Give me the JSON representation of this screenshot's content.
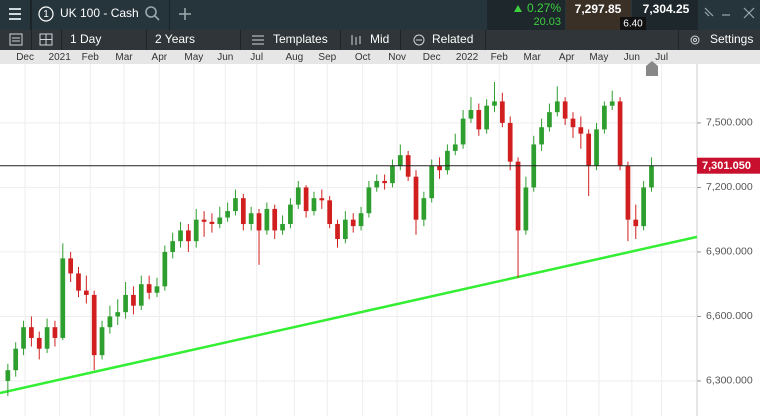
{
  "header": {
    "instrument_number": "1",
    "instrument": "UK 100 - Cash",
    "change_pct": "0.27%",
    "change": "20.03",
    "bid": "7,297.85",
    "spread": "6.40",
    "ask": "7,304.25"
  },
  "toolbar": {
    "interval": "1 Day",
    "range": "2 Years",
    "templates": "Templates",
    "price_type": "Mid",
    "related": "Related",
    "settings": "Settings"
  },
  "chart_data": {
    "type": "candlestick",
    "candles": [
      [
        6300,
        6380,
        6230,
        6350
      ],
      [
        6350,
        6480,
        6320,
        6450
      ],
      [
        6450,
        6580,
        6420,
        6550
      ],
      [
        6550,
        6600,
        6460,
        6500
      ],
      [
        6500,
        6530,
        6400,
        6450
      ],
      [
        6450,
        6590,
        6430,
        6550
      ],
      [
        6550,
        6580,
        6460,
        6500
      ],
      [
        6500,
        6940,
        6490,
        6870
      ],
      [
        6870,
        6900,
        6760,
        6800
      ],
      [
        6800,
        6830,
        6690,
        6720
      ],
      [
        6720,
        6790,
        6660,
        6700
      ],
      [
        6700,
        6720,
        6350,
        6420
      ],
      [
        6420,
        6580,
        6400,
        6550
      ],
      [
        6550,
        6650,
        6520,
        6600
      ],
      [
        6600,
        6680,
        6560,
        6620
      ],
      [
        6620,
        6760,
        6590,
        6700
      ],
      [
        6700,
        6740,
        6610,
        6650
      ],
      [
        6650,
        6790,
        6630,
        6750
      ],
      [
        6750,
        6790,
        6680,
        6710
      ],
      [
        6710,
        6780,
        6690,
        6740
      ],
      [
        6740,
        6930,
        6720,
        6900
      ],
      [
        6900,
        6990,
        6870,
        6950
      ],
      [
        6950,
        7040,
        6920,
        7000
      ],
      [
        7000,
        7030,
        6900,
        6950
      ],
      [
        6950,
        7100,
        6920,
        7050
      ],
      [
        7050,
        7090,
        6970,
        7040
      ],
      [
        7040,
        7080,
        6990,
        7030
      ],
      [
        7030,
        7110,
        7010,
        7060
      ],
      [
        7060,
        7130,
        7040,
        7090
      ],
      [
        7090,
        7190,
        7070,
        7150
      ],
      [
        7150,
        7170,
        7000,
        7030
      ],
      [
        7030,
        7110,
        7000,
        7080
      ],
      [
        7080,
        7100,
        6840,
        7000
      ],
      [
        7000,
        7130,
        6980,
        7100
      ],
      [
        7100,
        7120,
        6960,
        7000
      ],
      [
        7000,
        7070,
        6980,
        7030
      ],
      [
        7030,
        7150,
        7010,
        7120
      ],
      [
        7120,
        7230,
        7100,
        7200
      ],
      [
        7200,
        7210,
        7060,
        7090
      ],
      [
        7090,
        7180,
        7070,
        7150
      ],
      [
        7150,
        7190,
        7100,
        7140
      ],
      [
        7140,
        7160,
        7010,
        7030
      ],
      [
        7030,
        7050,
        6920,
        6960
      ],
      [
        6960,
        7090,
        6940,
        7050
      ],
      [
        7050,
        7080,
        6990,
        7020
      ],
      [
        7020,
        7110,
        7000,
        7080
      ],
      [
        7080,
        7230,
        7060,
        7200
      ],
      [
        7200,
        7260,
        7180,
        7230
      ],
      [
        7230,
        7260,
        7190,
        7220
      ],
      [
        7220,
        7330,
        7200,
        7300
      ],
      [
        7300,
        7400,
        7280,
        7350
      ],
      [
        7350,
        7370,
        7230,
        7250
      ],
      [
        7250,
        7280,
        6980,
        7050
      ],
      [
        7050,
        7180,
        7020,
        7150
      ],
      [
        7150,
        7330,
        7130,
        7300
      ],
      [
        7300,
        7340,
        7240,
        7280
      ],
      [
        7280,
        7400,
        7260,
        7370
      ],
      [
        7370,
        7450,
        7350,
        7400
      ],
      [
        7400,
        7560,
        7380,
        7520
      ],
      [
        7520,
        7620,
        7500,
        7560
      ],
      [
        7560,
        7590,
        7440,
        7470
      ],
      [
        7470,
        7610,
        7450,
        7580
      ],
      [
        7580,
        7690,
        7550,
        7600
      ],
      [
        7600,
        7640,
        7480,
        7500
      ],
      [
        7500,
        7530,
        7280,
        7320
      ],
      [
        7320,
        7340,
        6780,
        7000
      ],
      [
        7000,
        7250,
        6980,
        7200
      ],
      [
        7200,
        7440,
        7180,
        7400
      ],
      [
        7400,
        7520,
        7370,
        7480
      ],
      [
        7480,
        7590,
        7460,
        7550
      ],
      [
        7550,
        7670,
        7530,
        7600
      ],
      [
        7600,
        7620,
        7490,
        7520
      ],
      [
        7520,
        7550,
        7430,
        7480
      ],
      [
        7480,
        7530,
        7380,
        7450
      ],
      [
        7450,
        7470,
        7160,
        7300
      ],
      [
        7300,
        7500,
        7280,
        7470
      ],
      [
        7470,
        7600,
        7450,
        7580
      ],
      [
        7580,
        7650,
        7560,
        7600
      ],
      [
        7600,
        7620,
        7280,
        7300
      ],
      [
        7300,
        7320,
        6950,
        7050
      ],
      [
        7050,
        7120,
        6960,
        7020
      ],
      [
        7020,
        7230,
        7000,
        7200
      ],
      [
        7200,
        7340,
        7180,
        7301
      ]
    ],
    "xlim": [
      0,
      88.8
    ],
    "xticks": [
      {
        "value": 3.2,
        "label": "Dec"
      },
      {
        "value": 7.6,
        "label": "2021"
      },
      {
        "value": 11.5,
        "label": "Feb"
      },
      {
        "value": 15.8,
        "label": "Mar"
      },
      {
        "value": 20.3,
        "label": "Apr"
      },
      {
        "value": 24.7,
        "label": "May"
      },
      {
        "value": 28.7,
        "label": "Jun"
      },
      {
        "value": 32.7,
        "label": "Jul"
      },
      {
        "value": 37.5,
        "label": "Aug"
      },
      {
        "value": 41.7,
        "label": "Sep"
      },
      {
        "value": 46.2,
        "label": "Oct"
      },
      {
        "value": 50.6,
        "label": "Nov"
      },
      {
        "value": 55,
        "label": "Dec"
      },
      {
        "value": 59.5,
        "label": "2022"
      },
      {
        "value": 63.6,
        "label": "Feb"
      },
      {
        "value": 67.8,
        "label": "Mar"
      },
      {
        "value": 72.2,
        "label": "Apr"
      },
      {
        "value": 76.3,
        "label": "May"
      },
      {
        "value": 80.5,
        "label": "Jun"
      },
      {
        "value": 84.3,
        "label": "Jul"
      }
    ],
    "ylim": [
      6137,
      7774
    ],
    "yticks": [
      {
        "value": 6300,
        "label": "6,300.000"
      },
      {
        "value": 6600,
        "label": "6,600.000"
      },
      {
        "value": 6900,
        "label": "6,900.000"
      },
      {
        "value": 7200,
        "label": "7,200.000"
      },
      {
        "value": 7500,
        "label": "7,500.000"
      }
    ],
    "up_color": "#2e9e2e",
    "down_color": "#d11f1f",
    "grid": true,
    "current_price": {
      "value": 7301.05,
      "label": "7,301.050"
    },
    "trendline": {
      "x": [
        0,
        88.8
      ],
      "y": [
        6244,
        6970
      ],
      "color": "#33ee33"
    }
  }
}
